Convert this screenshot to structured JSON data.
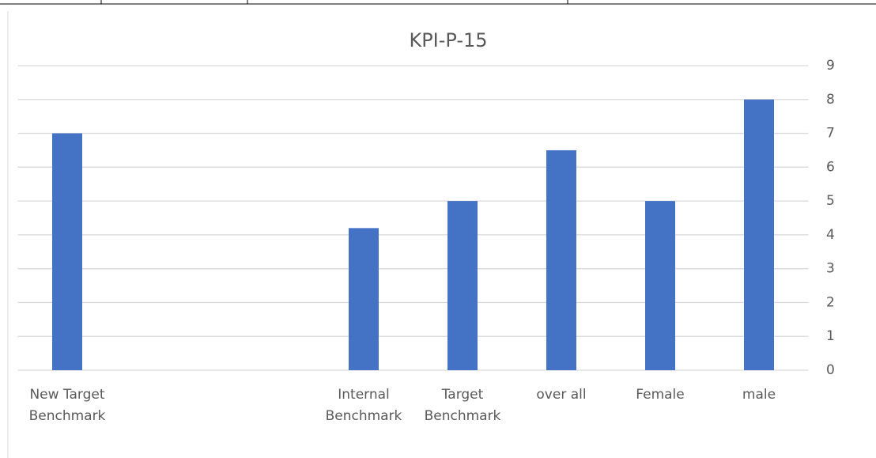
{
  "chart_data": {
    "type": "bar",
    "title": "KPI-P-15",
    "categories": [
      "New Target Benchmark",
      null,
      null,
      "Internal Benchmark",
      "Target Benchmark",
      "over all",
      "Female",
      "male"
    ],
    "values": [
      7,
      null,
      null,
      4.2,
      5,
      6.5,
      5,
      8
    ],
    "color": "#4472c4",
    "ylim": [
      0,
      9
    ],
    "yticks": [
      0,
      1,
      2,
      3,
      4,
      5,
      6,
      7,
      8,
      9
    ],
    "grid": true
  }
}
